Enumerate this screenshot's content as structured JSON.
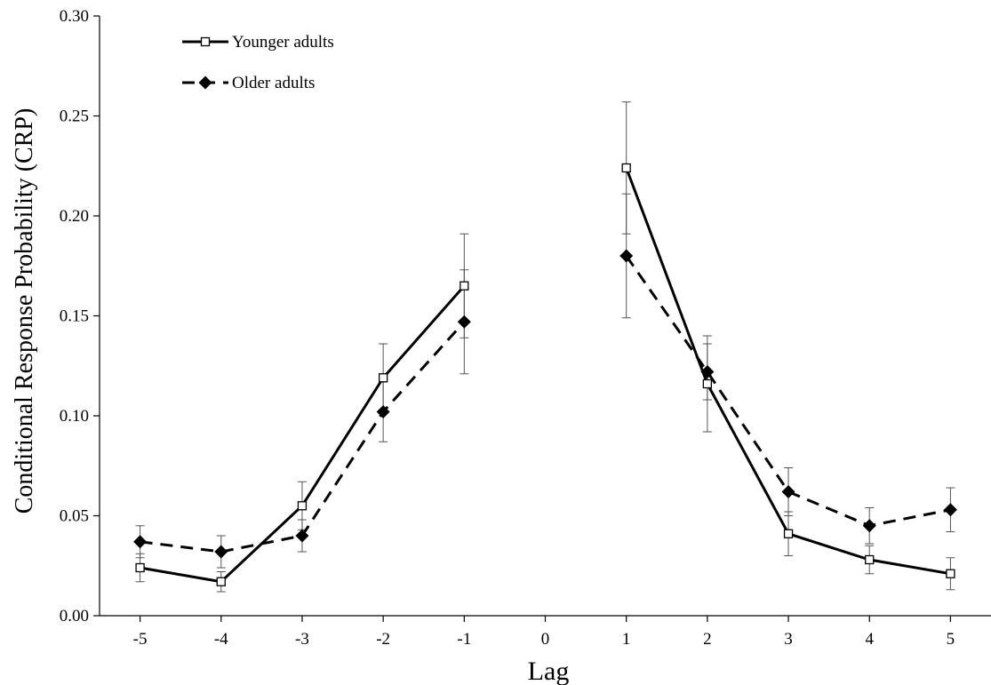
{
  "chart_data": {
    "type": "line",
    "xlabel": "Lag",
    "ylabel": "Conditional Response Probability (CRP)",
    "x_ticks": [
      "-5",
      "-4",
      "-3",
      "-2",
      "-1",
      "0",
      "1",
      "2",
      "3",
      "4",
      "5"
    ],
    "y_ticks": [
      "0.00",
      "0.05",
      "0.10",
      "0.15",
      "0.20",
      "0.25",
      "0.30"
    ],
    "xlim": [
      -5.5,
      5.5
    ],
    "ylim": [
      0,
      0.3
    ],
    "grid": false,
    "legend_position": "top-left",
    "series": [
      {
        "name": "Younger adults",
        "marker": "open-square",
        "line_style": "solid",
        "segments": [
          {
            "x": [
              -5,
              -4,
              -3,
              -2,
              -1
            ],
            "y": [
              0.024,
              0.017,
              0.055,
              0.119,
              0.165
            ],
            "err": [
              0.007,
              0.005,
              0.012,
              0.017,
              0.026
            ]
          },
          {
            "x": [
              1,
              2,
              3,
              4,
              5
            ],
            "y": [
              0.224,
              0.116,
              0.041,
              0.028,
              0.021
            ],
            "err": [
              0.033,
              0.024,
              0.011,
              0.007,
              0.008
            ]
          }
        ]
      },
      {
        "name": "Older adults",
        "marker": "filled-diamond",
        "line_style": "dashed",
        "segments": [
          {
            "x": [
              -5,
              -4,
              -3,
              -2,
              -1
            ],
            "y": [
              0.037,
              0.032,
              0.04,
              0.102,
              0.147
            ],
            "err": [
              0.008,
              0.008,
              0.008,
              0.015,
              0.026
            ]
          },
          {
            "x": [
              1,
              2,
              3,
              4,
              5
            ],
            "y": [
              0.18,
              0.122,
              0.062,
              0.045,
              0.053
            ],
            "err": [
              0.031,
              0.014,
              0.012,
              0.009,
              0.011
            ]
          }
        ]
      }
    ]
  }
}
